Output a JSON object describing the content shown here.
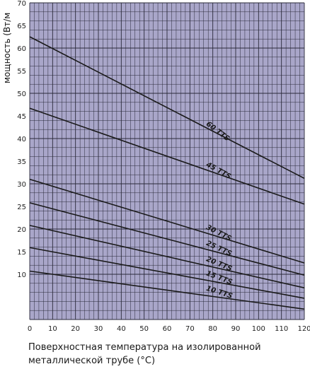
{
  "chart_data": {
    "type": "line",
    "ylabel": "мощность (Вт/м",
    "xlabel_line1": "Поверхностная температура на изолированной",
    "xlabel_line2": "металлической трубе (°C)",
    "xlim": [
      0,
      120
    ],
    "ylim": [
      0,
      70
    ],
    "x_ticks": [
      0,
      10,
      20,
      30,
      40,
      50,
      60,
      70,
      80,
      90,
      100,
      110,
      120
    ],
    "y_ticks": [
      10,
      15,
      20,
      25,
      30,
      35,
      40,
      45,
      50,
      55,
      60,
      65,
      70
    ],
    "grid": true,
    "series": [
      {
        "name": "60 TTS",
        "x": [
          0,
          120
        ],
        "y": [
          62.5,
          31.2
        ]
      },
      {
        "name": "45 TTS",
        "x": [
          0,
          120
        ],
        "y": [
          46.7,
          25.5
        ]
      },
      {
        "name": "30 TTS",
        "x": [
          0,
          120
        ],
        "y": [
          31.0,
          12.5
        ]
      },
      {
        "name": "25 TTS",
        "x": [
          0,
          120
        ],
        "y": [
          25.8,
          9.8
        ]
      },
      {
        "name": "20 TTS",
        "x": [
          0,
          120
        ],
        "y": [
          20.8,
          7.0
        ]
      },
      {
        "name": "15 TTS",
        "x": [
          0,
          120
        ],
        "y": [
          15.9,
          4.7
        ]
      },
      {
        "name": "10 TTS",
        "x": [
          0,
          120
        ],
        "y": [
          10.7,
          2.3
        ]
      }
    ],
    "colors": {
      "plot_background": "#a9a6c9",
      "grid": "#2a2a3a",
      "line": "#1a1a1a"
    }
  }
}
